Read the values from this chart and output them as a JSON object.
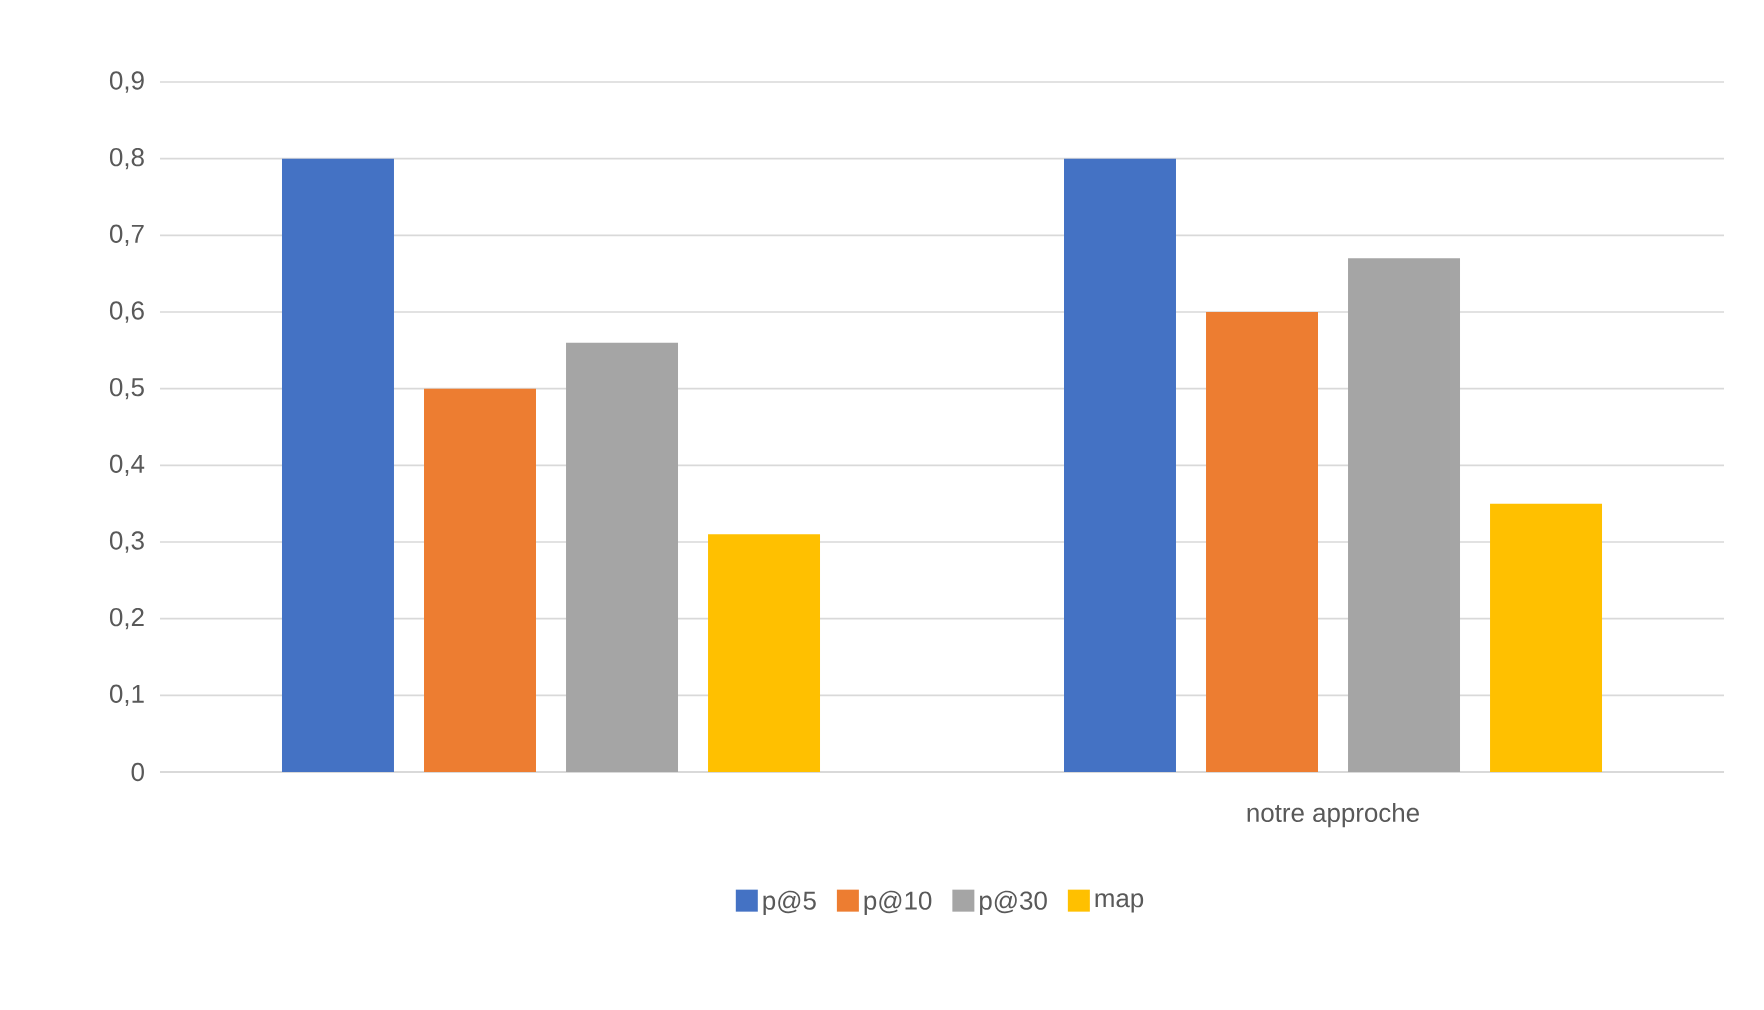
{
  "chart_data": {
    "type": "bar",
    "categories": [
      null,
      "notre approche"
    ],
    "series": [
      {
        "name": "p@5",
        "color": "#4472c4",
        "values": [
          0.8,
          0.8
        ]
      },
      {
        "name": "p@10",
        "color": "#ed7d31",
        "values": [
          0.5,
          0.6
        ]
      },
      {
        "name": "p@30",
        "color": "#a5a5a5",
        "values": [
          0.56,
          0.67
        ]
      },
      {
        "name": "map",
        "color": "#ffc000",
        "values": [
          0.31,
          0.35
        ]
      }
    ],
    "ylim": [
      0,
      0.9
    ],
    "yticks": [
      {
        "value": 0,
        "label": "0"
      },
      {
        "value": 0.1,
        "label": "0,1"
      },
      {
        "value": 0.2,
        "label": "0,2"
      },
      {
        "value": 0.3,
        "label": "0,3"
      },
      {
        "value": 0.4,
        "label": "0,4"
      },
      {
        "value": 0.5,
        "label": "0,5"
      },
      {
        "value": 0.6,
        "label": "0,6"
      },
      {
        "value": 0.7,
        "label": "0,7"
      },
      {
        "value": 0.8,
        "label": "0,8"
      },
      {
        "value": 0.9,
        "label": "0,9"
      }
    ],
    "grid": "y",
    "legend": "bottom"
  }
}
